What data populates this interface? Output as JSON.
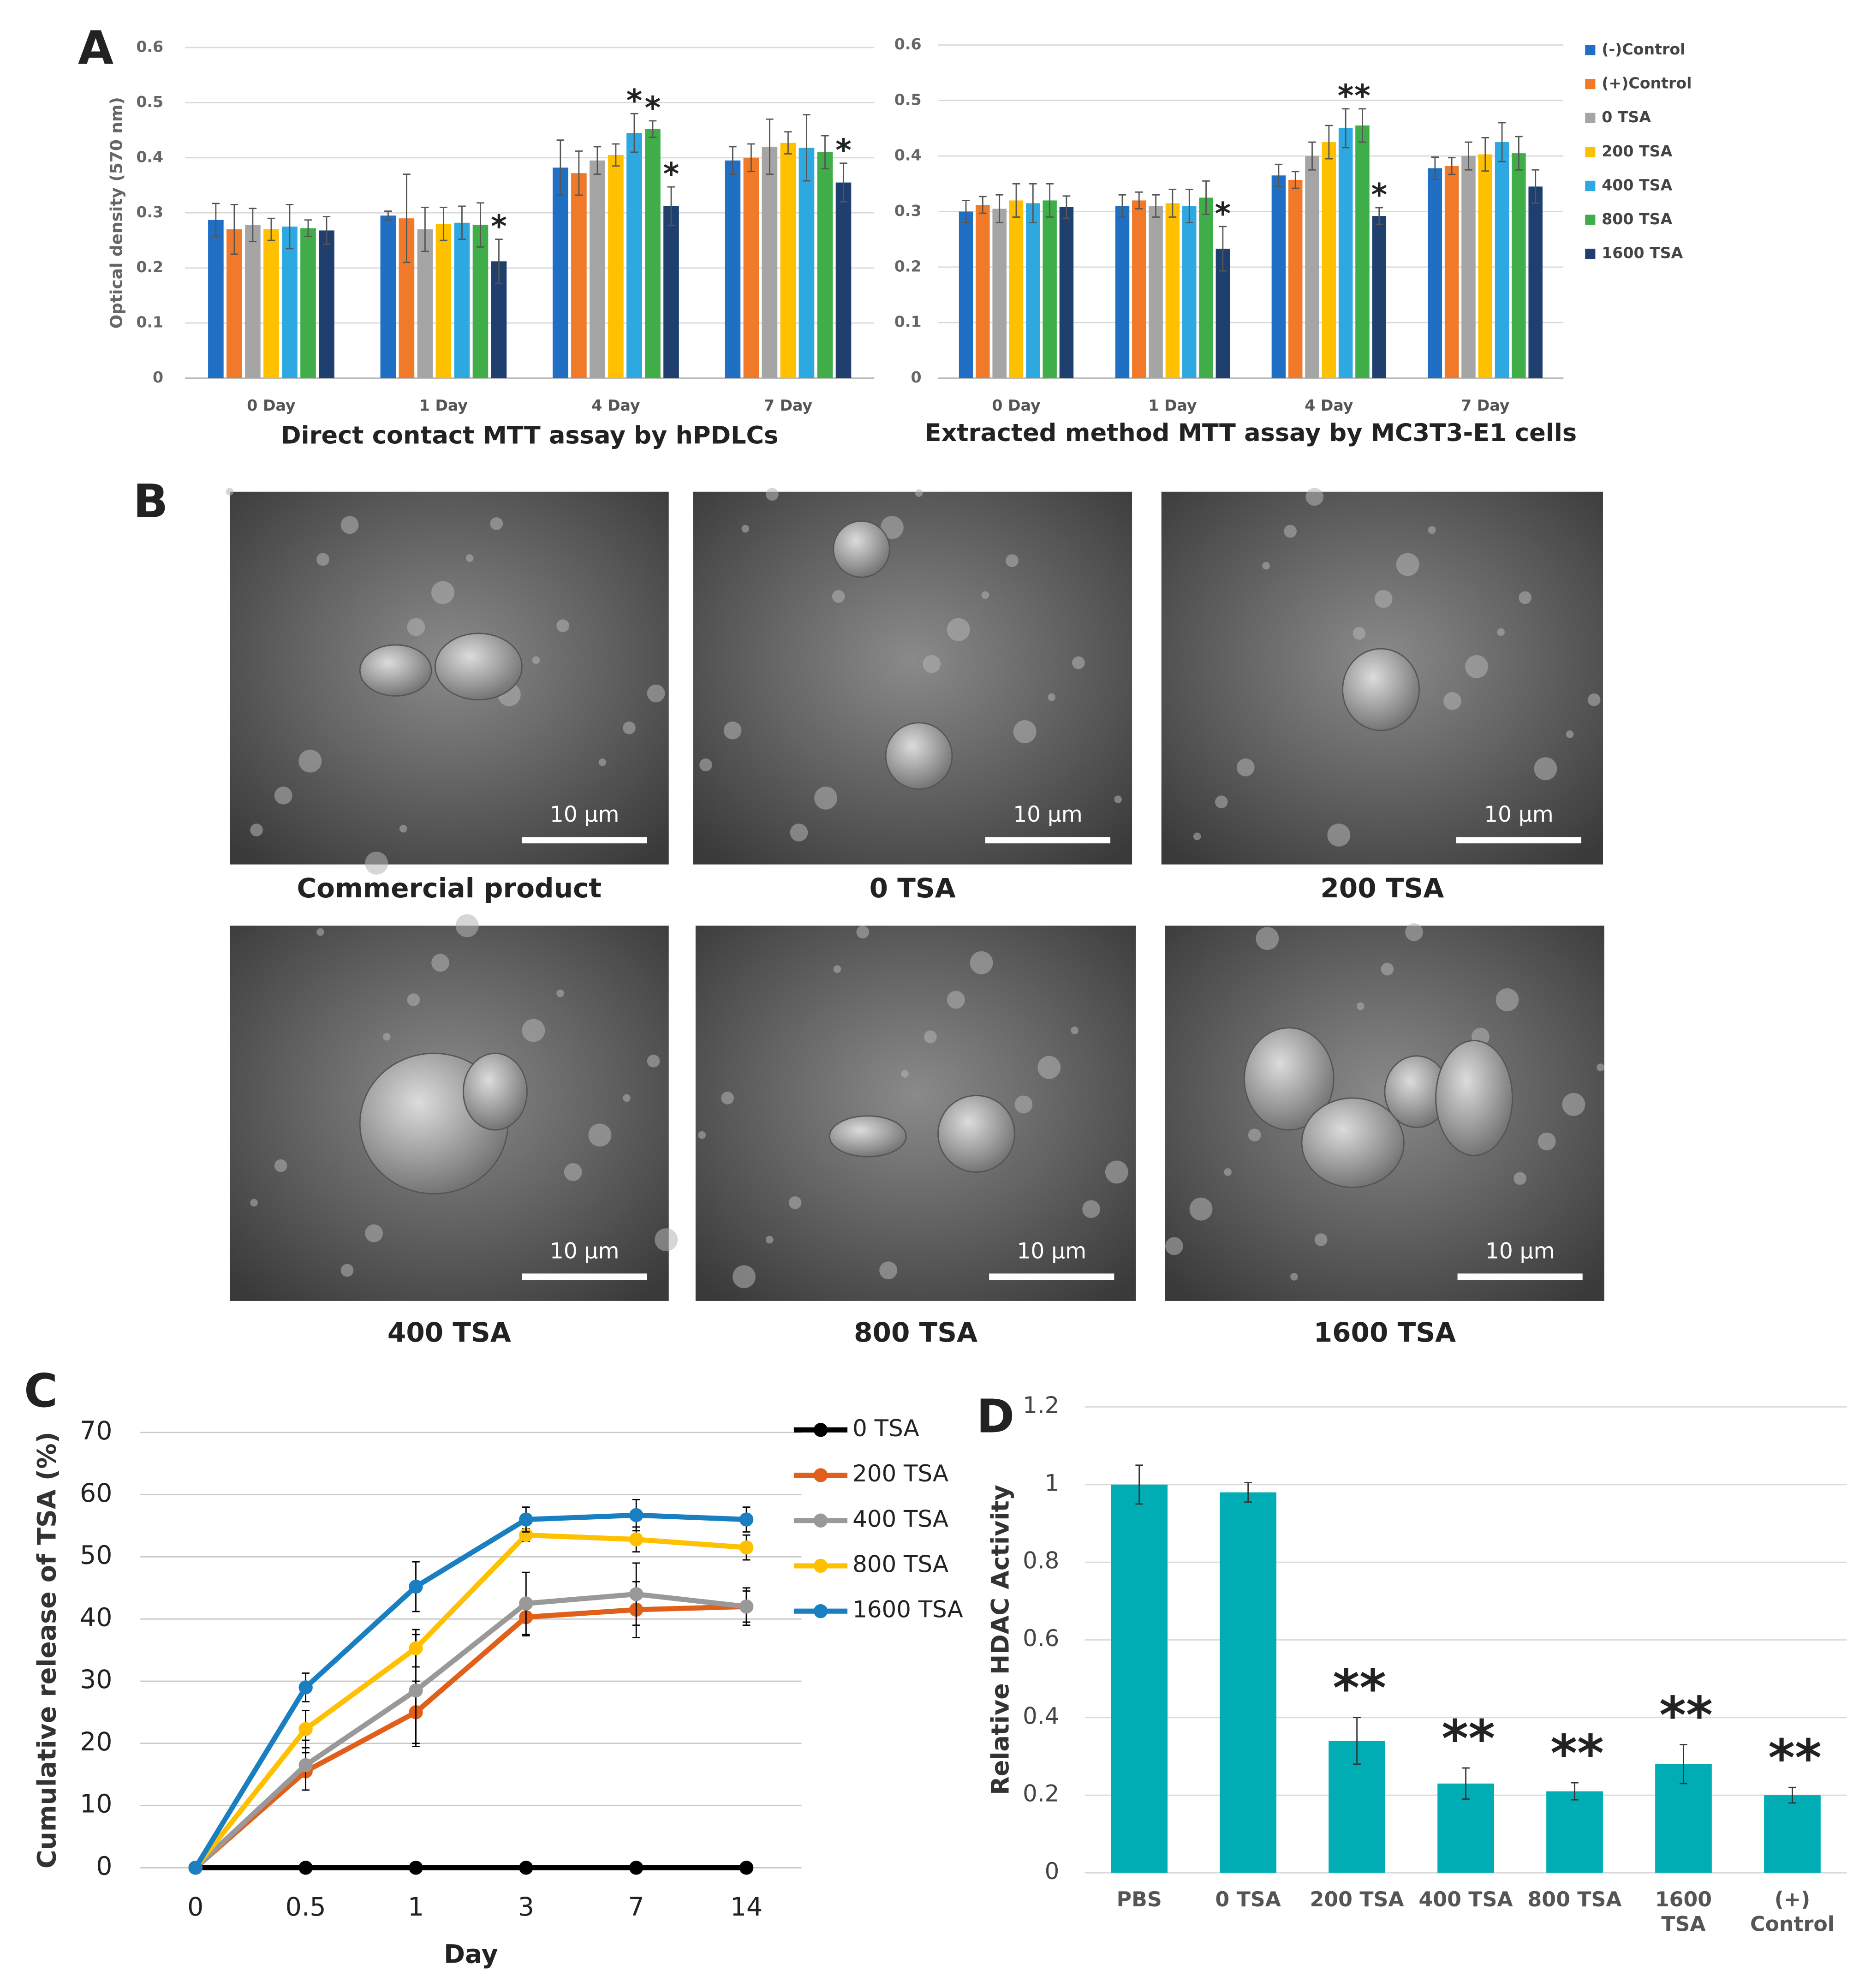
{
  "panel_labels": [
    "A",
    "B",
    "C",
    "D"
  ],
  "micrographs": [
    {
      "caption": "Commercial product",
      "scale_bar": "10 µm"
    },
    {
      "caption": "0 TSA",
      "scale_bar": "10 µm"
    },
    {
      "caption": "200 TSA",
      "scale_bar": "10 µm"
    },
    {
      "caption": "400 TSA",
      "scale_bar": "10 µm"
    },
    {
      "caption": "800 TSA",
      "scale_bar": "10 µm"
    },
    {
      "caption": "1600 TSA",
      "scale_bar": "10 µm"
    }
  ],
  "chart_data": [
    {
      "type": "grouped_bar",
      "x_label": "Direct contact MTT assay by hPDLCs",
      "y_label": "Optical density (570 nm)",
      "categories": [
        "0 Day",
        "1 Day",
        "4 Day",
        "7 Day"
      ],
      "ylim": [
        0,
        0.6
      ],
      "yticks": [
        0,
        0.1,
        0.2,
        0.3,
        0.4,
        0.5,
        0.6
      ],
      "grid": true,
      "series": [
        {
          "name": "(-)Control",
          "color": "#1f6fc5",
          "values": [
            0.287,
            0.295,
            0.382,
            0.395
          ],
          "errors": [
            0.03,
            0.008,
            0.05,
            0.025
          ],
          "significance": [
            null,
            null,
            null,
            null
          ]
        },
        {
          "name": "(+)Control",
          "color": "#f07a2a",
          "values": [
            0.27,
            0.29,
            0.372,
            0.4
          ],
          "errors": [
            0.045,
            0.08,
            0.04,
            0.025
          ],
          "significance": [
            null,
            null,
            null,
            null
          ]
        },
        {
          "name": "0 TSA",
          "color": "#a5a5a5",
          "values": [
            0.278,
            0.27,
            0.395,
            0.42
          ],
          "errors": [
            0.03,
            0.04,
            0.025,
            0.05
          ],
          "significance": [
            null,
            null,
            null,
            null
          ]
        },
        {
          "name": "200 TSA",
          "color": "#ffc000",
          "values": [
            0.27,
            0.28,
            0.405,
            0.427
          ],
          "errors": [
            0.02,
            0.03,
            0.02,
            0.02
          ],
          "significance": [
            null,
            null,
            null,
            null
          ]
        },
        {
          "name": "400 TSA",
          "color": "#2ea8e0",
          "values": [
            0.275,
            0.282,
            0.445,
            0.418
          ],
          "errors": [
            0.04,
            0.03,
            0.035,
            0.06
          ],
          "significance": [
            null,
            null,
            "*",
            null
          ]
        },
        {
          "name": "800 TSA",
          "color": "#3fae49",
          "values": [
            0.272,
            0.278,
            0.452,
            0.41
          ],
          "errors": [
            0.015,
            0.04,
            0.015,
            0.03
          ],
          "significance": [
            null,
            null,
            "*",
            null
          ]
        },
        {
          "name": "1600 TSA",
          "color": "#1f3f6e",
          "values": [
            0.268,
            0.212,
            0.312,
            0.355
          ],
          "errors": [
            0.025,
            0.04,
            0.035,
            0.035
          ],
          "significance": [
            null,
            "*",
            "*",
            "*"
          ]
        }
      ]
    },
    {
      "type": "grouped_bar",
      "x_label": "Extracted method MTT assay by MC3T3-E1 cells",
      "legend": "right",
      "categories": [
        "0 Day",
        "1 Day",
        "4 Day",
        "7 Day"
      ],
      "ylim": [
        0,
        0.6
      ],
      "yticks": [
        0,
        0.1,
        0.2,
        0.3,
        0.4,
        0.5,
        0.6
      ],
      "grid": true,
      "series": [
        {
          "name": "(-)Control",
          "color": "#1f6fc5",
          "values": [
            0.3,
            0.31,
            0.365,
            0.378
          ],
          "errors": [
            0.02,
            0.02,
            0.02,
            0.02
          ],
          "significance": [
            null,
            null,
            null,
            null
          ]
        },
        {
          "name": "(+)Control",
          "color": "#f07a2a",
          "values": [
            0.312,
            0.32,
            0.357,
            0.382
          ],
          "errors": [
            0.015,
            0.015,
            0.015,
            0.015
          ],
          "significance": [
            null,
            null,
            null,
            null
          ]
        },
        {
          "name": "0 TSA",
          "color": "#a5a5a5",
          "values": [
            0.305,
            0.31,
            0.4,
            0.4
          ],
          "errors": [
            0.025,
            0.02,
            0.025,
            0.025
          ],
          "significance": [
            null,
            null,
            null,
            null
          ]
        },
        {
          "name": "200 TSA",
          "color": "#ffc000",
          "values": [
            0.32,
            0.315,
            0.425,
            0.403
          ],
          "errors": [
            0.03,
            0.025,
            0.03,
            0.03
          ],
          "significance": [
            null,
            null,
            null,
            null
          ]
        },
        {
          "name": "400 TSA",
          "color": "#2ea8e0",
          "values": [
            0.315,
            0.31,
            0.45,
            0.425
          ],
          "errors": [
            0.035,
            0.03,
            0.035,
            0.035
          ],
          "significance": [
            null,
            null,
            "*",
            null
          ]
        },
        {
          "name": "800 TSA",
          "color": "#3fae49",
          "values": [
            0.32,
            0.325,
            0.455,
            0.405
          ],
          "errors": [
            0.03,
            0.03,
            0.03,
            0.03
          ],
          "significance": [
            null,
            null,
            "*",
            null
          ]
        },
        {
          "name": "1600 TSA",
          "color": "#1f3f6e",
          "values": [
            0.308,
            0.233,
            0.292,
            0.345
          ],
          "errors": [
            0.02,
            0.04,
            0.015,
            0.03
          ],
          "significance": [
            null,
            "*",
            "*",
            null
          ]
        }
      ]
    },
    {
      "type": "line",
      "x_label": "Day",
      "y_label": "Cumulative release of TSA (%)",
      "legend": "right",
      "categories": [
        "0",
        "0.5",
        "1",
        "3",
        "7",
        "14"
      ],
      "ylim": [
        0,
        70
      ],
      "yticks": [
        0,
        10,
        20,
        30,
        40,
        50,
        60,
        70
      ],
      "grid": true,
      "series": [
        {
          "name": "0 TSA",
          "color": "#000000",
          "values": [
            0,
            0,
            0,
            0,
            0,
            0
          ],
          "errors": [
            0,
            0,
            0,
            0,
            0,
            0
          ]
        },
        {
          "name": "200 TSA",
          "color": "#e0601b",
          "values": [
            0,
            15.5,
            25,
            40.3,
            41.5,
            42
          ],
          "errors": [
            0,
            3,
            5,
            3,
            4.5,
            2.5
          ]
        },
        {
          "name": "400 TSA",
          "color": "#999999",
          "values": [
            0,
            16.5,
            28.5,
            42.5,
            44,
            42
          ],
          "errors": [
            0,
            4,
            9,
            5,
            5,
            3
          ]
        },
        {
          "name": "800 TSA",
          "color": "#ffc000",
          "values": [
            0,
            22.3,
            35.3,
            53.5,
            52.8,
            51.5
          ],
          "errors": [
            0,
            3,
            3,
            1,
            2,
            2
          ]
        },
        {
          "name": "1600 TSA",
          "color": "#1a7fc1",
          "values": [
            0,
            29,
            45.2,
            56,
            56.7,
            56
          ],
          "errors": [
            0,
            2.3,
            4,
            2,
            2.5,
            2
          ]
        }
      ]
    },
    {
      "type": "bar",
      "y_label": "Relative HDAC  Activity",
      "color": "#00adb5",
      "categories": [
        "PBS",
        "0 TSA",
        "200 TSA",
        "400 TSA",
        "800 TSA",
        "1600 TSA",
        "(+) Control"
      ],
      "values": [
        1,
        0.98,
        0.34,
        0.23,
        0.21,
        0.28,
        0.2
      ],
      "errors": [
        0.05,
        0.025,
        0.06,
        0.04,
        0.022,
        0.05,
        0.02
      ],
      "significance": [
        null,
        null,
        "**",
        "**",
        "**",
        "**",
        "**"
      ],
      "ylim": [
        0,
        1.2
      ],
      "yticks": [
        0,
        0.2,
        0.4,
        0.6,
        0.8,
        1,
        1.2
      ],
      "grid": true
    }
  ]
}
